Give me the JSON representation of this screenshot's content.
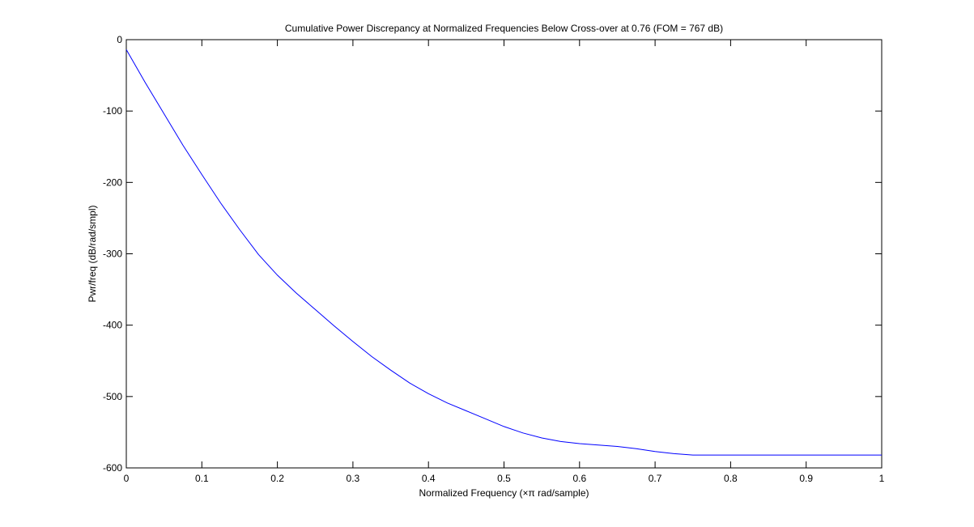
{
  "chart_data": {
    "type": "line",
    "title": "Cumulative Power Discrepancy at Normalized Frequencies Below Cross-over at 0.76 (FOM = 767 dB)",
    "xlabel": "Normalized Frequency  (×π rad/sample)",
    "ylabel": "Pwr/freq (dB/rad/smpl)",
    "xlim": [
      0,
      1
    ],
    "ylim": [
      -600,
      0
    ],
    "xticks": [
      0,
      0.1,
      0.2,
      0.3,
      0.4,
      0.5,
      0.6,
      0.7,
      0.8,
      0.9,
      1
    ],
    "xtick_labels": [
      "0",
      "0.1",
      "0.2",
      "0.3",
      "0.4",
      "0.5",
      "0.6",
      "0.7",
      "0.8",
      "0.9",
      "1"
    ],
    "yticks": [
      0,
      -100,
      -200,
      -300,
      -400,
      -500,
      -600
    ],
    "ytick_labels": [
      "0",
      "-100",
      "-200",
      "-300",
      "-400",
      "-500",
      "-600"
    ],
    "grid": false,
    "line_color": "#0000ff",
    "series": [
      {
        "x": [
          0,
          0.025,
          0.05,
          0.075,
          0.1,
          0.125,
          0.15,
          0.175,
          0.2,
          0.225,
          0.25,
          0.275,
          0.3,
          0.325,
          0.35,
          0.375,
          0.4,
          0.425,
          0.45,
          0.475,
          0.5,
          0.525,
          0.55,
          0.575,
          0.6,
          0.625,
          0.65,
          0.675,
          0.7,
          0.725,
          0.75,
          0.8,
          0.85,
          0.9,
          0.95,
          1.0
        ],
        "y": [
          -14,
          -60,
          -104,
          -148,
          -189,
          -229,
          -266,
          -301,
          -330,
          -355,
          -378,
          -401,
          -423,
          -444,
          -463,
          -481,
          -496,
          -509,
          -520,
          -531,
          -542,
          -551,
          -558,
          -563,
          -566,
          -568,
          -570,
          -573,
          -577,
          -580,
          -582,
          -582,
          -582,
          -582,
          -582,
          -582
        ]
      }
    ]
  }
}
